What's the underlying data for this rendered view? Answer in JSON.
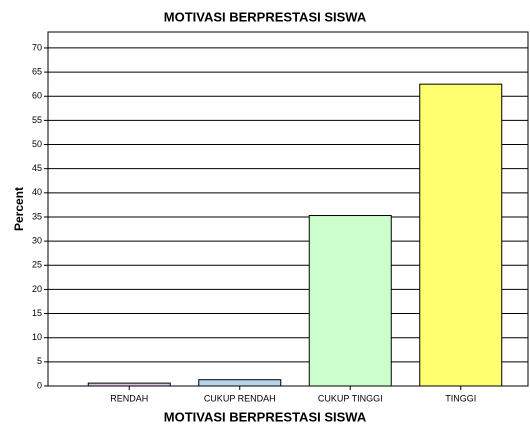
{
  "chart_data": {
    "type": "bar",
    "title": "MOTIVASI BERPRESTASI SISWA",
    "x_label": "MOTIVASI BERPRESTASI SISWA",
    "y_label": "Percent",
    "categories": [
      "RENDAH",
      "CUKUP RENDAH",
      "CUKUP TINGGI",
      "TINGGI"
    ],
    "values": [
      0.6,
      1.3,
      35.3,
      62.5
    ],
    "colors": [
      "#dcc0e8",
      "#b8d4ec",
      "#ccffcc",
      "#ffff70"
    ],
    "ylim": [
      0,
      73.3
    ],
    "yticks": [
      0,
      5,
      10,
      15,
      20,
      25,
      30,
      35,
      40,
      45,
      50,
      55,
      60,
      65,
      70
    ],
    "grid": true
  }
}
